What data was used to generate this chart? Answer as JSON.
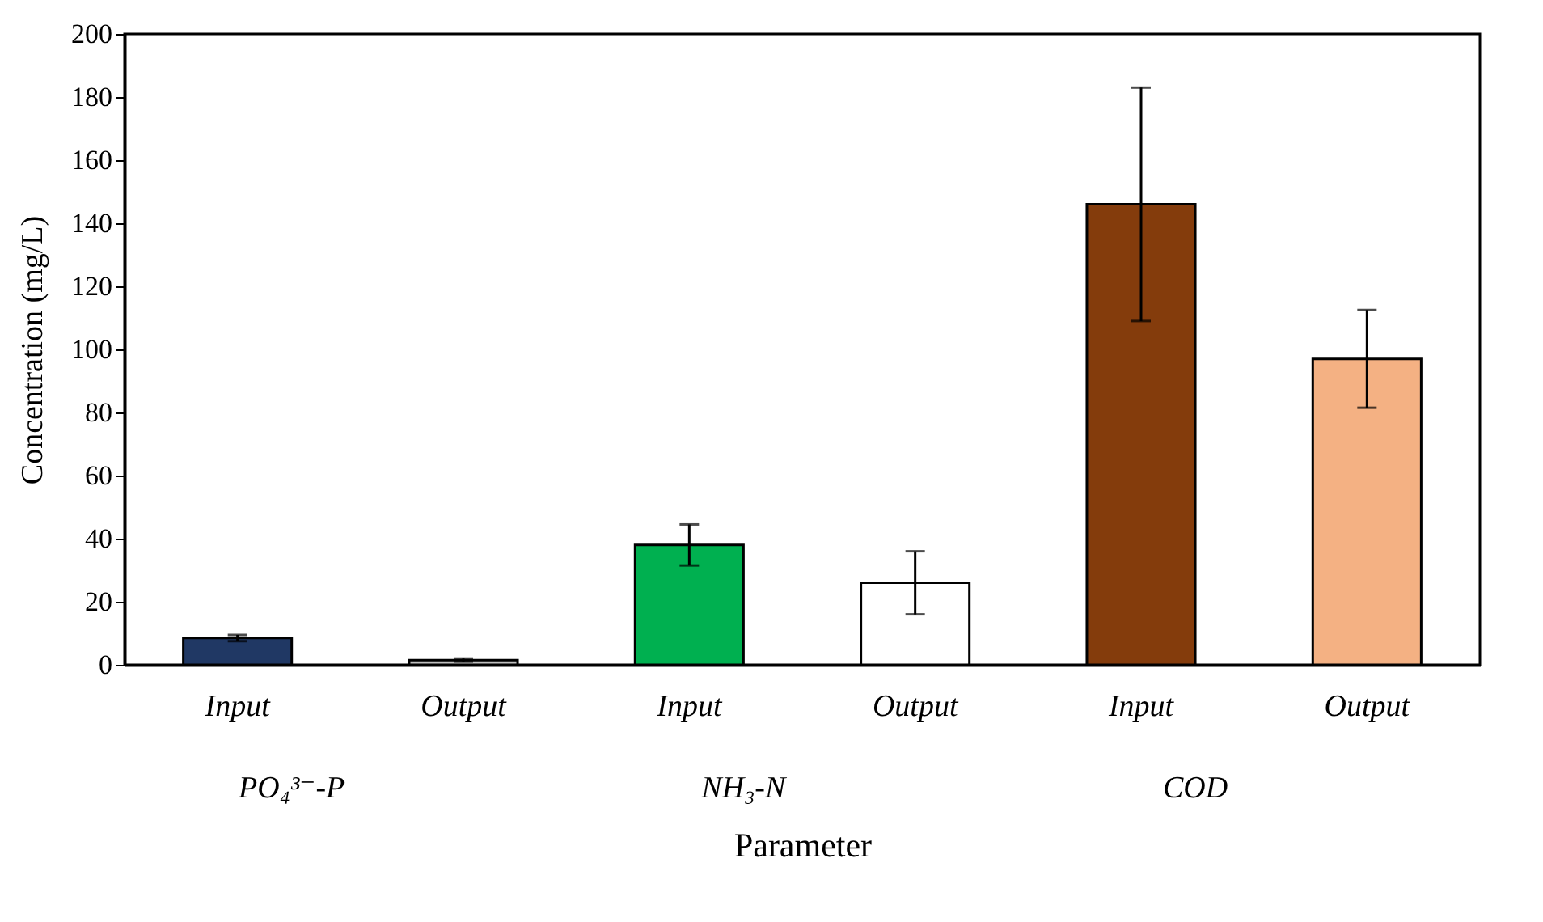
{
  "chart_data": {
    "type": "bar",
    "xlabel": "Parameter",
    "ylabel": "Concentration (mg/L)",
    "categories": [
      "Input",
      "Output",
      "Input",
      "Output",
      "Input",
      "Output"
    ],
    "values": [
      8.5,
      1.5,
      38,
      26,
      146,
      97
    ],
    "errors": [
      1,
      0.5,
      6.5,
      10,
      37,
      15.5
    ],
    "colors": [
      "#203864",
      "#bfbfbf",
      "#00b050",
      "#ffffff",
      "#843c0c",
      "#f4b183"
    ],
    "annotations": [
      "PO₄³⁻-P",
      "NH₃-N",
      "COD"
    ],
    "ylim": [
      0,
      200
    ],
    "yticks": [
      0,
      20,
      40,
      60,
      80,
      100,
      120,
      140,
      160,
      180,
      200
    ],
    "grid": false
  }
}
